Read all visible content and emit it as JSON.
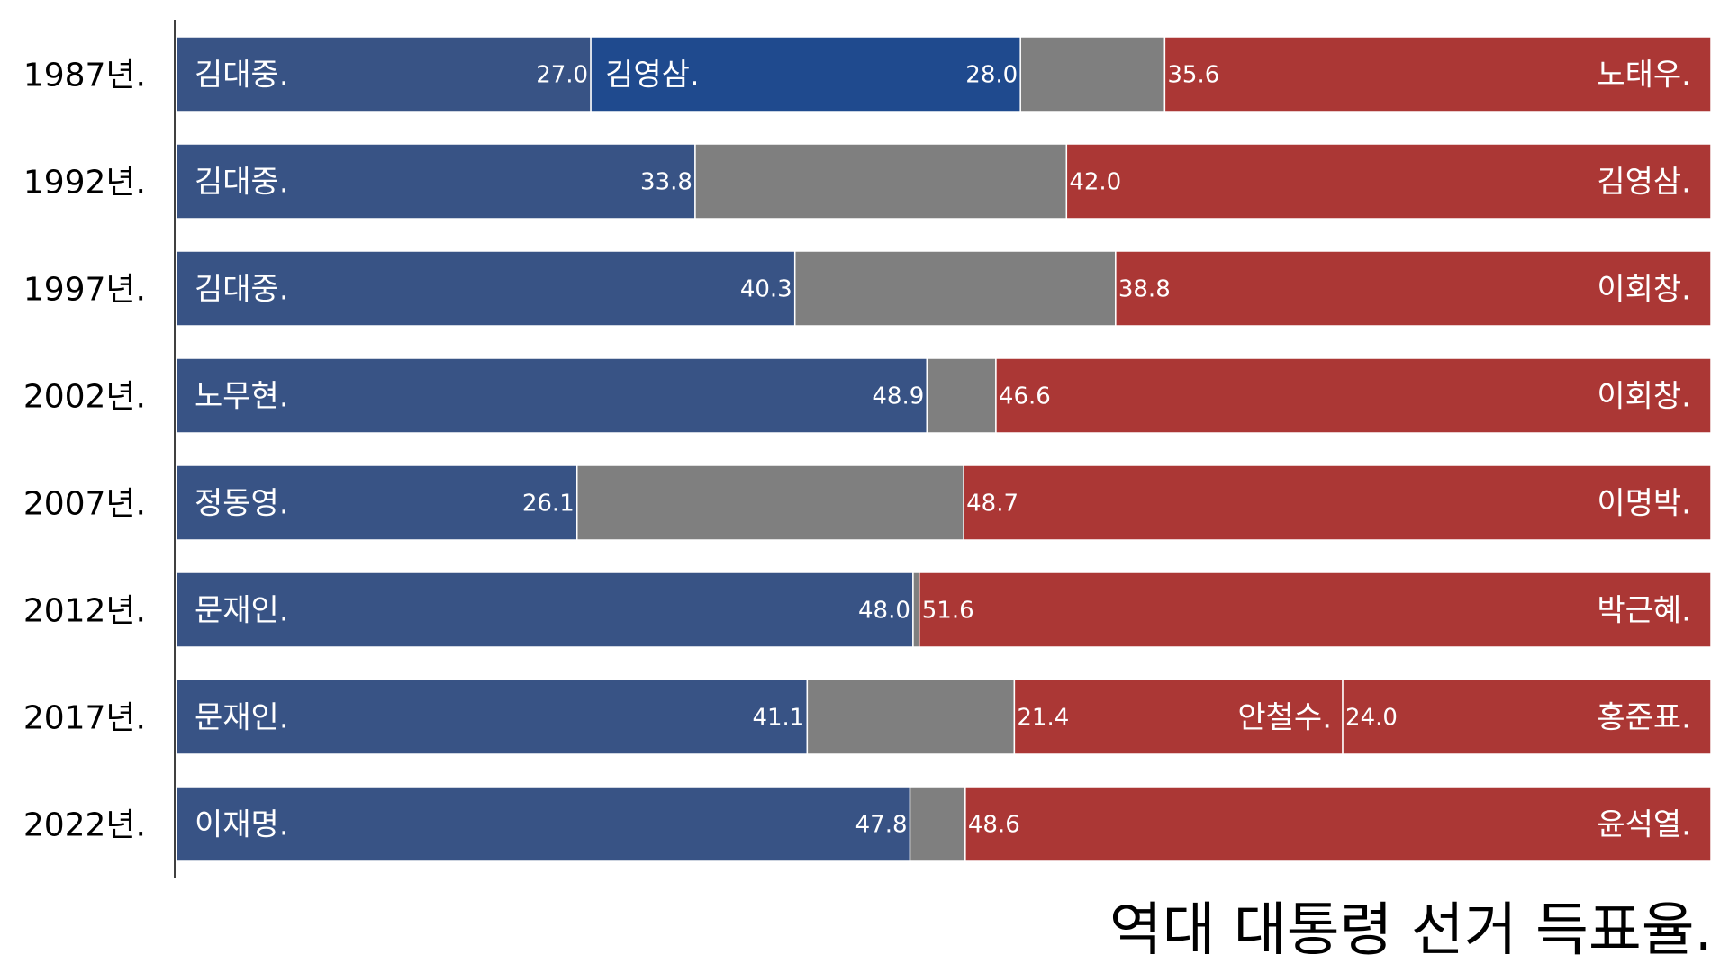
{
  "chart_data": {
    "type": "bar",
    "stacked": true,
    "orientation": "horizontal",
    "title": "역대 대통령 선거 득표율.",
    "colors": {
      "left": "#385385",
      "left_second": "#1f4a8e",
      "other": "#7f7f7f",
      "right": "#ab3735"
    },
    "rows": [
      {
        "year": "1987년.",
        "segments": [
          {
            "candidate": "김대중.",
            "value": 27.0,
            "label": "27.0",
            "color": "left"
          },
          {
            "candidate": "김영삼.",
            "value": 28.0,
            "label": "28.0",
            "color": "left_second"
          },
          {
            "candidate": "",
            "value": 9.4,
            "label": "",
            "color": "other"
          },
          {
            "candidate": "노태우.",
            "value": 35.6,
            "label": "35.6",
            "color": "right"
          }
        ]
      },
      {
        "year": "1992년.",
        "segments": [
          {
            "candidate": "김대중.",
            "value": 33.8,
            "label": "33.8",
            "color": "left"
          },
          {
            "candidate": "",
            "value": 24.2,
            "label": "",
            "color": "other"
          },
          {
            "candidate": "김영삼.",
            "value": 42.0,
            "label": "42.0",
            "color": "right"
          }
        ]
      },
      {
        "year": "1997년.",
        "segments": [
          {
            "candidate": "김대중.",
            "value": 40.3,
            "label": "40.3",
            "color": "left"
          },
          {
            "candidate": "",
            "value": 20.9,
            "label": "",
            "color": "other"
          },
          {
            "candidate": "이회창.",
            "value": 38.8,
            "label": "38.8",
            "color": "right"
          }
        ]
      },
      {
        "year": "2002년.",
        "segments": [
          {
            "candidate": "노무현.",
            "value": 48.9,
            "label": "48.9",
            "color": "left"
          },
          {
            "candidate": "",
            "value": 4.5,
            "label": "",
            "color": "other"
          },
          {
            "candidate": "이회창.",
            "value": 46.6,
            "label": "46.6",
            "color": "right"
          }
        ]
      },
      {
        "year": "2007년.",
        "segments": [
          {
            "candidate": "정동영.",
            "value": 26.1,
            "label": "26.1",
            "color": "left"
          },
          {
            "candidate": "",
            "value": 25.2,
            "label": "",
            "color": "other"
          },
          {
            "candidate": "이명박.",
            "value": 48.7,
            "label": "48.7",
            "color": "right"
          }
        ]
      },
      {
        "year": "2012년.",
        "segments": [
          {
            "candidate": "문재인.",
            "value": 48.0,
            "label": "48.0",
            "color": "left"
          },
          {
            "candidate": "",
            "value": 0.4,
            "label": "",
            "color": "other"
          },
          {
            "candidate": "박근혜.",
            "value": 51.6,
            "label": "51.6",
            "color": "right"
          }
        ]
      },
      {
        "year": "2017년.",
        "segments": [
          {
            "candidate": "문재인.",
            "value": 41.1,
            "label": "41.1",
            "color": "left"
          },
          {
            "candidate": "",
            "value": 13.5,
            "label": "",
            "color": "other"
          },
          {
            "candidate": "안철수.",
            "value": 21.4,
            "label": "21.4",
            "color": "right"
          },
          {
            "candidate": "홍준표.",
            "value": 24.0,
            "label": "24.0",
            "color": "right"
          }
        ]
      },
      {
        "year": "2022년.",
        "segments": [
          {
            "candidate": "이재명.",
            "value": 47.8,
            "label": "47.8",
            "color": "left"
          },
          {
            "candidate": "",
            "value": 3.6,
            "label": "",
            "color": "other"
          },
          {
            "candidate": "윤석열.",
            "value": 48.6,
            "label": "48.6",
            "color": "right"
          }
        ]
      }
    ]
  }
}
